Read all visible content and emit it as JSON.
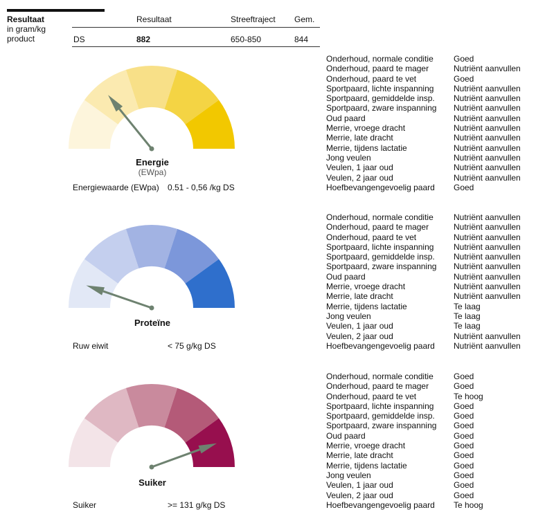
{
  "header": {
    "title": "Resultaat",
    "subtitle_line1": "in gram/kg",
    "subtitle_line2": "product",
    "col_result": "Resultaat",
    "col_range": "Streeftraject",
    "col_avg": "Gem."
  },
  "ds_row": {
    "label": "DS",
    "result": "882",
    "range": "650-850",
    "avg": "844"
  },
  "colors": {
    "needle": "#6e8270",
    "energie": [
      "#fdf5dc",
      "#fbeab0",
      "#f8e088",
      "#f4d444",
      "#f2c800"
    ],
    "proteine": [
      "#e2e8f6",
      "#c4cfee",
      "#a2b3e3",
      "#7c97da",
      "#2f6fcc"
    ],
    "suiker": [
      "#f3e4e8",
      "#dfb8c3",
      "#c98a9d",
      "#b45a78",
      "#970f4e"
    ]
  },
  "gauges": [
    {
      "title": "Energie",
      "subtitle": "(EWpa)",
      "needle_angle_deg": 129,
      "footer_label": "Energiewaarde (EWpa)",
      "footer_value": "0.51 - 0,56 /kg DS"
    },
    {
      "title": "Proteïne",
      "subtitle": "",
      "needle_angle_deg": 161,
      "footer_label": "Ruw eiwit",
      "footer_value": "< 75 g/kg DS"
    },
    {
      "title": "Suiker",
      "subtitle": "",
      "needle_angle_deg": 20,
      "footer_label": "Suiker",
      "footer_value": ">= 131 g/kg DS"
    }
  ],
  "status_groups": [
    [
      {
        "label": "Onderhoud, normale conditie",
        "value": "Goed"
      },
      {
        "label": "Onderhoud, paard te mager",
        "value": "Nutriënt aanvullen"
      },
      {
        "label": "Onderhoud, paard te vet",
        "value": "Goed"
      },
      {
        "label": "Sportpaard, lichte inspanning",
        "value": "Nutriënt aanvullen"
      },
      {
        "label": "Sportpaard, gemiddelde insp.",
        "value": "Nutriënt aanvullen"
      },
      {
        "label": "Sportpaard, zware inspanning",
        "value": "Nutriënt aanvullen"
      },
      {
        "label": "Oud paard",
        "value": "Nutriënt aanvullen"
      },
      {
        "label": "Merrie, vroege dracht",
        "value": "Nutriënt aanvullen"
      },
      {
        "label": "Merrie, late dracht",
        "value": "Nutriënt aanvullen"
      },
      {
        "label": "Merrie, tijdens lactatie",
        "value": "Nutriënt aanvullen"
      },
      {
        "label": "Jong veulen",
        "value": "Nutriënt aanvullen"
      },
      {
        "label": "Veulen, 1 jaar oud",
        "value": "Nutriënt aanvullen"
      },
      {
        "label": "Veulen, 2 jaar oud",
        "value": "Nutriënt aanvullen"
      },
      {
        "label": "Hoefbevangengevoelig paard",
        "value": "Goed"
      }
    ],
    [
      {
        "label": "Onderhoud, normale conditie",
        "value": "Nutriënt aanvullen"
      },
      {
        "label": "Onderhoud, paard te mager",
        "value": "Nutriënt aanvullen"
      },
      {
        "label": "Onderhoud, paard te vet",
        "value": "Nutriënt aanvullen"
      },
      {
        "label": "Sportpaard, lichte inspanning",
        "value": "Nutriënt aanvullen"
      },
      {
        "label": "Sportpaard, gemiddelde insp.",
        "value": "Nutriënt aanvullen"
      },
      {
        "label": "Sportpaard, zware inspanning",
        "value": "Nutriënt aanvullen"
      },
      {
        "label": "Oud paard",
        "value": "Nutriënt aanvullen"
      },
      {
        "label": "Merrie, vroege dracht",
        "value": "Nutriënt aanvullen"
      },
      {
        "label": "Merrie, late dracht",
        "value": "Nutriënt aanvullen"
      },
      {
        "label": "Merrie, tijdens lactatie",
        "value": "Te laag"
      },
      {
        "label": "Jong veulen",
        "value": "Te laag"
      },
      {
        "label": "Veulen, 1 jaar oud",
        "value": "Te laag"
      },
      {
        "label": "Veulen, 2 jaar oud",
        "value": "Nutriënt aanvullen"
      },
      {
        "label": "Hoefbevangengevoelig paard",
        "value": "Nutriënt aanvullen"
      }
    ],
    [
      {
        "label": "Onderhoud, normale conditie",
        "value": "Goed"
      },
      {
        "label": "Onderhoud, paard te mager",
        "value": "Goed"
      },
      {
        "label": "Onderhoud, paard te vet",
        "value": "Te hoog"
      },
      {
        "label": "Sportpaard, lichte inspanning",
        "value": "Goed"
      },
      {
        "label": "Sportpaard, gemiddelde insp.",
        "value": "Goed"
      },
      {
        "label": "Sportpaard, zware inspanning",
        "value": "Goed"
      },
      {
        "label": "Oud paard",
        "value": "Goed"
      },
      {
        "label": "Merrie, vroege dracht",
        "value": "Goed"
      },
      {
        "label": "Merrie, late dracht",
        "value": "Goed"
      },
      {
        "label": "Merrie, tijdens lactatie",
        "value": "Goed"
      },
      {
        "label": "Jong veulen",
        "value": "Goed"
      },
      {
        "label": "Veulen, 1 jaar oud",
        "value": "Goed"
      },
      {
        "label": "Veulen, 2 jaar oud",
        "value": "Goed"
      },
      {
        "label": "Hoefbevangengevoelig paard",
        "value": "Te hoog"
      }
    ]
  ]
}
